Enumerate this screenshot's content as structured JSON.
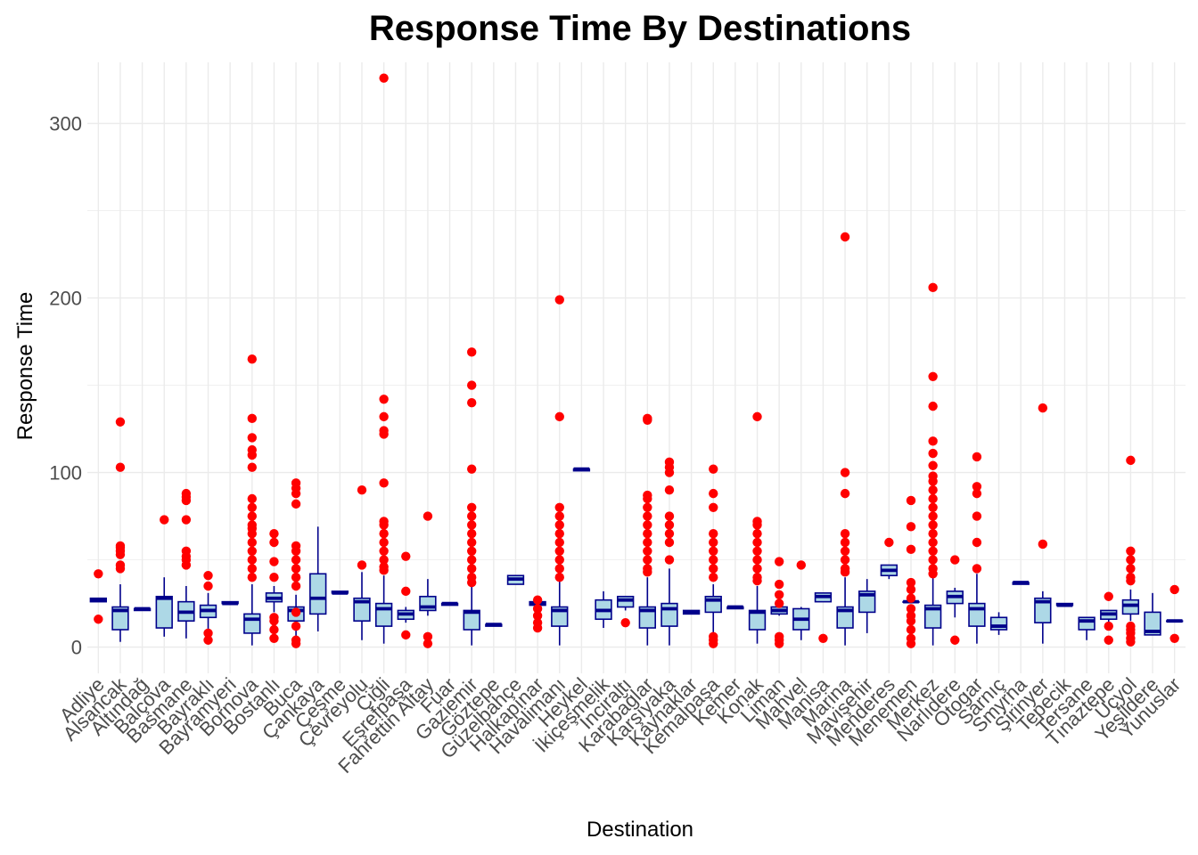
{
  "chart_data": {
    "type": "box",
    "title": "Response Time By Destinations",
    "xlabel": "Destination",
    "ylabel": "Response Time",
    "ylim": [
      -15,
      335
    ],
    "yticks": [
      0,
      100,
      200,
      300
    ],
    "grid": true,
    "colors": {
      "box_fill": "#add8e6",
      "box_line": "#00008b",
      "outlier": "#ff0000",
      "grid": "#ebebeb"
    },
    "categories": [
      {
        "name": "Adliye",
        "q1": 26,
        "median": 27,
        "q3": 28,
        "lo": 26,
        "hi": 28,
        "outliers": [
          16,
          42
        ]
      },
      {
        "name": "Alsancak",
        "q1": 10,
        "median": 21,
        "q3": 23,
        "lo": 3,
        "hi": 36,
        "outliers": [
          45,
          47,
          53,
          55,
          57,
          58,
          103,
          129
        ]
      },
      {
        "name": "Altındağ",
        "q1": 21,
        "median": 22,
        "q3": 22,
        "lo": 21,
        "hi": 22,
        "outliers": []
      },
      {
        "name": "Balçova",
        "q1": 11,
        "median": 28,
        "q3": 29,
        "lo": 6,
        "hi": 40,
        "outliers": [
          73
        ]
      },
      {
        "name": "Basmane",
        "q1": 15,
        "median": 20,
        "q3": 26,
        "lo": 5,
        "hi": 35,
        "outliers": [
          47,
          50,
          52,
          55,
          73,
          84,
          86,
          88
        ]
      },
      {
        "name": "Bayraklı",
        "q1": 17,
        "median": 21,
        "q3": 24,
        "lo": 8,
        "hi": 31,
        "outliers": [
          4,
          8,
          35,
          41
        ]
      },
      {
        "name": "Bayramyeri",
        "q1": 25,
        "median": 25,
        "q3": 26,
        "lo": 25,
        "hi": 26,
        "outliers": []
      },
      {
        "name": "Bornova",
        "q1": 8,
        "median": 16,
        "q3": 19,
        "lo": 1,
        "hi": 36,
        "outliers": [
          40,
          45,
          50,
          55,
          60,
          65,
          68,
          70,
          75,
          80,
          85,
          103,
          110,
          113,
          120,
          131,
          165
        ]
      },
      {
        "name": "Bostanlı",
        "q1": 26,
        "median": 28,
        "q3": 31,
        "lo": 20,
        "hi": 35,
        "outliers": [
          5,
          10,
          15,
          17,
          40,
          49,
          60,
          65
        ]
      },
      {
        "name": "Buca",
        "q1": 15,
        "median": 21,
        "q3": 23,
        "lo": 5,
        "hi": 30,
        "outliers": [
          2,
          4,
          12,
          20,
          35,
          40,
          45,
          50,
          55,
          58,
          82,
          88,
          91,
          94
        ]
      },
      {
        "name": "Çankaya",
        "q1": 19,
        "median": 28,
        "q3": 42,
        "lo": 9,
        "hi": 69,
        "outliers": []
      },
      {
        "name": "Çeşme",
        "q1": 31,
        "median": 31,
        "q3": 32,
        "lo": 31,
        "hi": 32,
        "outliers": []
      },
      {
        "name": "Çevreyolu",
        "q1": 15,
        "median": 26,
        "q3": 28,
        "lo": 4,
        "hi": 43,
        "outliers": [
          47,
          90
        ]
      },
      {
        "name": "Çiğli",
        "q1": 12,
        "median": 22,
        "q3": 25,
        "lo": 2,
        "hi": 41,
        "outliers": [
          44,
          46,
          50,
          55,
          60,
          65,
          70,
          72,
          94,
          122,
          124,
          132,
          142,
          326
        ]
      },
      {
        "name": "Eşrefpaşa",
        "q1": 16,
        "median": 19,
        "q3": 21,
        "lo": 14,
        "hi": 23,
        "outliers": [
          7,
          32,
          52
        ]
      },
      {
        "name": "Fahrettin Altay",
        "q1": 21,
        "median": 23,
        "q3": 29,
        "lo": 18,
        "hi": 39,
        "outliers": [
          2,
          6,
          75
        ]
      },
      {
        "name": "Fuar",
        "q1": 24,
        "median": 25,
        "q3": 25,
        "lo": 24,
        "hi": 25,
        "outliers": []
      },
      {
        "name": "Gaziemir",
        "q1": 10,
        "median": 20,
        "q3": 21,
        "lo": 1,
        "hi": 35,
        "outliers": [
          37,
          40,
          45,
          50,
          55,
          60,
          65,
          70,
          75,
          80,
          102,
          140,
          150,
          169
        ]
      },
      {
        "name": "Göztepe",
        "q1": 12,
        "median": 13,
        "q3": 13,
        "lo": 12,
        "hi": 13,
        "outliers": []
      },
      {
        "name": "Güzelbahçe",
        "q1": 36,
        "median": 39,
        "q3": 41,
        "lo": 36,
        "hi": 41,
        "outliers": []
      },
      {
        "name": "Halkapınar",
        "q1": 24,
        "median": 25,
        "q3": 26,
        "lo": 24,
        "hi": 26,
        "outliers": [
          11,
          14,
          18,
          22,
          27
        ]
      },
      {
        "name": "Havalimanı",
        "q1": 12,
        "median": 21,
        "q3": 23,
        "lo": 1,
        "hi": 38,
        "outliers": [
          40,
          45,
          50,
          55,
          60,
          65,
          70,
          75,
          80,
          132,
          199
        ]
      },
      {
        "name": "Heykel",
        "q1": 101,
        "median": 102,
        "q3": 102,
        "lo": 101,
        "hi": 102,
        "outliers": []
      },
      {
        "name": "İkiçeşmelik",
        "q1": 16,
        "median": 21,
        "q3": 27,
        "lo": 11,
        "hi": 32,
        "outliers": []
      },
      {
        "name": "İnciraltı",
        "q1": 23,
        "median": 27,
        "q3": 29,
        "lo": 21,
        "hi": 29,
        "outliers": [
          14
        ]
      },
      {
        "name": "Karabağlar",
        "q1": 11,
        "median": 21,
        "q3": 23,
        "lo": 1,
        "hi": 40,
        "outliers": [
          43,
          45,
          50,
          55,
          60,
          65,
          70,
          75,
          80,
          85,
          87,
          130,
          131
        ]
      },
      {
        "name": "Karşıyaka",
        "q1": 12,
        "median": 22,
        "q3": 25,
        "lo": 1,
        "hi": 45,
        "outliers": [
          50,
          60,
          65,
          70,
          75,
          90,
          100,
          103,
          106
        ]
      },
      {
        "name": "Kaynaklar",
        "q1": 19,
        "median": 20,
        "q3": 21,
        "lo": 19,
        "hi": 21,
        "outliers": []
      },
      {
        "name": "Kemalpaşa",
        "q1": 20,
        "median": 27,
        "q3": 29,
        "lo": 6,
        "hi": 36,
        "outliers": [
          2,
          4,
          6,
          40,
          45,
          50,
          55,
          60,
          65,
          80,
          88,
          102
        ]
      },
      {
        "name": "Kemer",
        "q1": 22,
        "median": 23,
        "q3": 23,
        "lo": 22,
        "hi": 23,
        "outliers": []
      },
      {
        "name": "Konak",
        "q1": 10,
        "median": 20,
        "q3": 21,
        "lo": 2,
        "hi": 35,
        "outliers": [
          38,
          40,
          45,
          50,
          55,
          60,
          65,
          70,
          72,
          132
        ]
      },
      {
        "name": "Liman",
        "q1": 19,
        "median": 21,
        "q3": 23,
        "lo": 18,
        "hi": 24,
        "outliers": [
          2,
          4,
          6,
          25,
          30,
          36,
          49
        ]
      },
      {
        "name": "Mahvel",
        "q1": 10,
        "median": 16,
        "q3": 22,
        "lo": 4,
        "hi": 23,
        "outliers": [
          47
        ]
      },
      {
        "name": "Manisa",
        "q1": 26,
        "median": 29,
        "q3": 31,
        "lo": 26,
        "hi": 31,
        "outliers": [
          5
        ]
      },
      {
        "name": "Marina",
        "q1": 11,
        "median": 21,
        "q3": 23,
        "lo": 1,
        "hi": 40,
        "outliers": [
          43,
          45,
          50,
          55,
          60,
          65,
          88,
          100,
          235
        ]
      },
      {
        "name": "Mavişehir",
        "q1": 20,
        "median": 30,
        "q3": 32,
        "lo": 8,
        "hi": 39,
        "outliers": []
      },
      {
        "name": "Menderes",
        "q1": 41,
        "median": 44,
        "q3": 47,
        "lo": 39,
        "hi": 47,
        "outliers": [
          60
        ]
      },
      {
        "name": "Menemen",
        "q1": 26,
        "median": 26,
        "q3": 26,
        "lo": 26,
        "hi": 26,
        "outliers": [
          2,
          5,
          10,
          15,
          18,
          22,
          28,
          33,
          37,
          56,
          69,
          84
        ]
      },
      {
        "name": "Merkez",
        "q1": 11,
        "median": 22,
        "q3": 24,
        "lo": 1,
        "hi": 40,
        "outliers": [
          42,
          45,
          50,
          55,
          60,
          65,
          70,
          75,
          80,
          85,
          90,
          95,
          98,
          104,
          111,
          118,
          138,
          155,
          206
        ]
      },
      {
        "name": "Narlıdere",
        "q1": 25,
        "median": 29,
        "q3": 32,
        "lo": 17,
        "hi": 34,
        "outliers": [
          4,
          50
        ]
      },
      {
        "name": "Otogar",
        "q1": 12,
        "median": 22,
        "q3": 25,
        "lo": 2,
        "hi": 42,
        "outliers": [
          45,
          60,
          75,
          88,
          92,
          109
        ]
      },
      {
        "name": "Sarnıç",
        "q1": 10,
        "median": 12,
        "q3": 17,
        "lo": 7,
        "hi": 20,
        "outliers": []
      },
      {
        "name": "Smyrna",
        "q1": 36,
        "median": 37,
        "q3": 37,
        "lo": 36,
        "hi": 37,
        "outliers": []
      },
      {
        "name": "Şirinyer",
        "q1": 14,
        "median": 26,
        "q3": 28,
        "lo": 2,
        "hi": 32,
        "outliers": [
          59,
          137
        ]
      },
      {
        "name": "Tepecik",
        "q1": 24,
        "median": 24,
        "q3": 25,
        "lo": 24,
        "hi": 25,
        "outliers": []
      },
      {
        "name": "Tersane",
        "q1": 10,
        "median": 15,
        "q3": 17,
        "lo": 4,
        "hi": 17,
        "outliers": []
      },
      {
        "name": "Tınaztepe",
        "q1": 16,
        "median": 19,
        "q3": 21,
        "lo": 14,
        "hi": 21,
        "outliers": [
          4,
          12,
          29
        ]
      },
      {
        "name": "Üçyol",
        "q1": 19,
        "median": 24,
        "q3": 27,
        "lo": 15,
        "hi": 33,
        "outliers": [
          3,
          5,
          8,
          10,
          12,
          38,
          40,
          45,
          50,
          55,
          107
        ]
      },
      {
        "name": "Yeşildere",
        "q1": 7,
        "median": 9,
        "q3": 20,
        "lo": 7,
        "hi": 31,
        "outliers": []
      },
      {
        "name": "Yunuslar",
        "q1": 15,
        "median": 15,
        "q3": 15,
        "lo": 15,
        "hi": 15,
        "outliers": [
          5,
          33
        ]
      }
    ]
  }
}
